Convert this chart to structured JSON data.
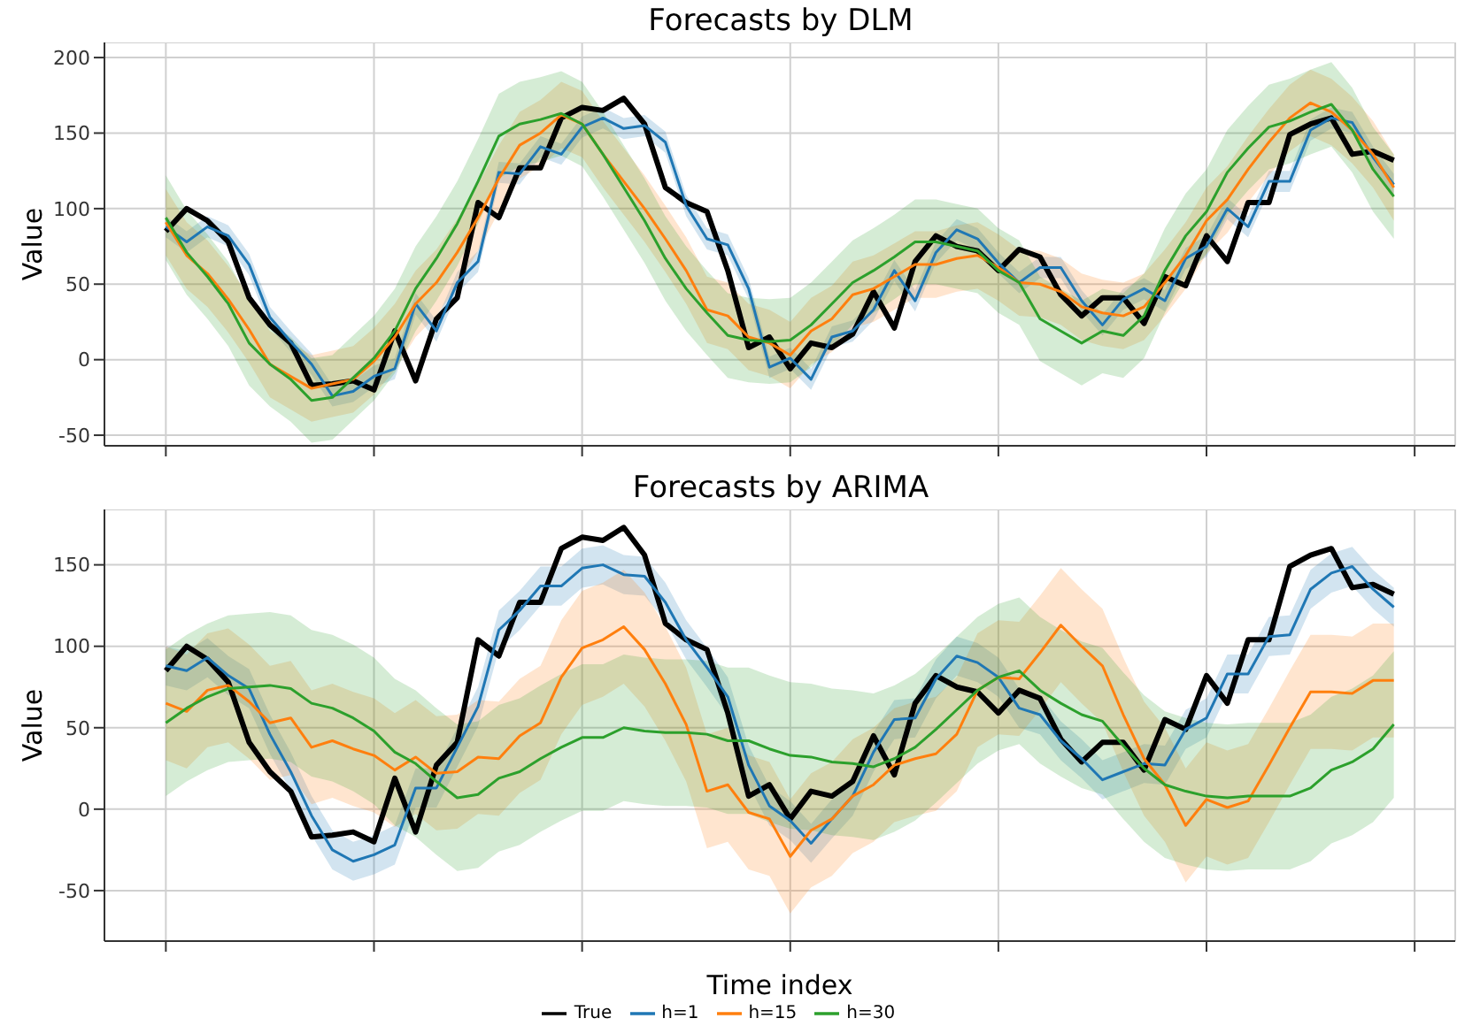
{
  "chart_data": [
    {
      "type": "line",
      "title": "Forecasts by DLM",
      "ylabel": "Value",
      "categories": [
        null,
        null,
        null,
        null,
        null,
        null,
        null,
        null,
        null,
        null,
        null,
        null,
        null,
        null,
        null,
        null,
        null,
        null,
        null,
        null,
        null,
        null,
        null,
        null,
        null,
        null,
        null,
        null,
        null,
        null,
        null,
        null,
        null,
        null,
        null,
        null,
        null,
        null,
        null,
        null,
        null,
        null,
        null,
        null,
        null,
        null,
        null,
        null,
        null,
        null,
        null,
        null,
        null,
        null,
        null,
        null,
        null,
        null,
        null,
        null
      ],
      "ylim": [
        -57,
        210
      ],
      "yticks": [
        -50,
        0,
        50,
        100,
        150,
        200
      ],
      "grid": true,
      "tick_labels": "y",
      "series": [
        {
          "color": "#000000",
          "values": [
            85,
            100,
            92,
            78,
            41,
            23,
            11,
            -17,
            -16,
            -14,
            -20,
            19,
            -14,
            27,
            41,
            104,
            94,
            127,
            127,
            160,
            167,
            165,
            173,
            156,
            114,
            104,
            98,
            59,
            8,
            15,
            -6,
            11,
            8,
            17,
            45,
            21,
            65,
            82,
            75,
            72,
            59,
            73,
            68,
            43,
            29,
            41,
            41,
            24,
            55,
            49,
            82,
            65,
            104,
            104,
            149,
            156,
            160,
            136,
            138,
            132
          ]
        },
        {
          "color": "#1f77b4",
          "values": [
            88,
            78,
            88,
            82,
            63,
            28,
            12,
            -3,
            -24,
            -21,
            -11,
            -6,
            37,
            19,
            51,
            65,
            124,
            123,
            141,
            136,
            154,
            160,
            153,
            155,
            144,
            102,
            80,
            76,
            47,
            -5,
            1,
            -13,
            15,
            19,
            33,
            59,
            39,
            71,
            86,
            80,
            64,
            51,
            61,
            61,
            39,
            23,
            40,
            47,
            39,
            67,
            75,
            100,
            88,
            118,
            118,
            152,
            160,
            157,
            134,
            116
          ],
          "lower": [
            81,
            71,
            81,
            75,
            56,
            21,
            5,
            -10,
            -31,
            -28,
            -18,
            -13,
            30,
            12,
            44,
            58,
            117,
            116,
            134,
            129,
            147,
            153,
            146,
            148,
            137,
            95,
            73,
            69,
            40,
            -12,
            -6,
            -20,
            8,
            12,
            26,
            52,
            32,
            64,
            79,
            73,
            57,
            44,
            54,
            54,
            32,
            16,
            33,
            40,
            32,
            60,
            68,
            93,
            81,
            111,
            111,
            145,
            153,
            150,
            127,
            109
          ],
          "upper": [
            95,
            85,
            95,
            89,
            70,
            35,
            19,
            4,
            -17,
            -14,
            -4,
            1,
            44,
            26,
            58,
            72,
            131,
            130,
            148,
            143,
            161,
            167,
            160,
            162,
            151,
            109,
            87,
            83,
            54,
            2,
            8,
            -6,
            22,
            26,
            40,
            66,
            46,
            78,
            93,
            87,
            71,
            58,
            68,
            68,
            46,
            30,
            47,
            54,
            46,
            74,
            82,
            107,
            95,
            125,
            125,
            159,
            167,
            164,
            141,
            123
          ]
        },
        {
          "color": "#ff7f0e",
          "values": [
            91,
            69,
            57,
            40,
            20,
            -3,
            -11,
            -19,
            -16,
            -13,
            -1,
            15,
            37,
            51,
            71,
            94,
            120,
            142,
            150,
            162,
            156,
            136,
            118,
            100,
            80,
            59,
            33,
            29,
            15,
            11,
            3,
            19,
            27,
            43,
            47,
            55,
            63,
            63,
            67,
            69,
            61,
            51,
            50,
            45,
            35,
            31,
            29,
            35,
            51,
            69,
            92,
            106,
            126,
            144,
            160,
            170,
            164,
            152,
            136,
            114
          ],
          "lower": [
            69,
            47,
            35,
            18,
            -2,
            -25,
            -33,
            -41,
            -38,
            -35,
            -23,
            -7,
            15,
            29,
            49,
            72,
            98,
            120,
            128,
            140,
            134,
            114,
            96,
            78,
            58,
            37,
            11,
            7,
            -7,
            -11,
            -19,
            -3,
            5,
            21,
            25,
            33,
            41,
            41,
            45,
            47,
            39,
            29,
            28,
            23,
            13,
            9,
            7,
            13,
            29,
            47,
            70,
            84,
            104,
            122,
            138,
            148,
            142,
            130,
            114,
            92
          ],
          "upper": [
            113,
            91,
            79,
            62,
            42,
            19,
            11,
            3,
            6,
            9,
            21,
            37,
            59,
            73,
            93,
            116,
            142,
            164,
            172,
            184,
            178,
            158,
            140,
            122,
            102,
            81,
            55,
            51,
            37,
            33,
            25,
            41,
            49,
            65,
            69,
            77,
            85,
            85,
            89,
            91,
            83,
            73,
            72,
            67,
            57,
            53,
            51,
            57,
            73,
            91,
            114,
            128,
            148,
            166,
            182,
            192,
            186,
            174,
            158,
            136
          ]
        },
        {
          "color": "#2ca02c",
          "values": [
            94,
            71,
            55,
            37,
            11,
            -3,
            -13,
            -27,
            -25,
            -12,
            1,
            19,
            47,
            67,
            90,
            118,
            148,
            156,
            159,
            163,
            156,
            136,
            114,
            92,
            67,
            47,
            31,
            16,
            13,
            12,
            13,
            23,
            37,
            51,
            59,
            68,
            78,
            78,
            75,
            72,
            59,
            51,
            27,
            19,
            11,
            19,
            16,
            29,
            59,
            82,
            98,
            124,
            140,
            154,
            158,
            164,
            169,
            152,
            126,
            108
          ],
          "lower": [
            66,
            43,
            27,
            9,
            -17,
            -31,
            -41,
            -55,
            -53,
            -40,
            -27,
            -9,
            19,
            39,
            62,
            90,
            120,
            128,
            131,
            135,
            128,
            108,
            86,
            64,
            39,
            19,
            3,
            -12,
            -15,
            -16,
            -15,
            -5,
            9,
            23,
            31,
            40,
            50,
            50,
            47,
            44,
            31,
            23,
            -1,
            -9,
            -17,
            -9,
            -12,
            1,
            31,
            54,
            70,
            96,
            112,
            126,
            130,
            136,
            141,
            124,
            98,
            80
          ],
          "upper": [
            122,
            99,
            83,
            65,
            39,
            25,
            15,
            1,
            3,
            16,
            29,
            47,
            75,
            95,
            118,
            146,
            176,
            184,
            187,
            191,
            184,
            164,
            142,
            120,
            95,
            75,
            59,
            44,
            41,
            40,
            41,
            51,
            65,
            79,
            87,
            96,
            106,
            106,
            103,
            100,
            87,
            79,
            55,
            47,
            39,
            47,
            44,
            57,
            87,
            110,
            126,
            152,
            168,
            182,
            186,
            192,
            197,
            180,
            154,
            136
          ]
        }
      ]
    },
    {
      "type": "line",
      "title": "Forecasts by ARIMA",
      "xlabel": "Time index",
      "ylabel": "Value",
      "categories": [
        null,
        null,
        null,
        null,
        null,
        null,
        null,
        null,
        null,
        null,
        null,
        null,
        null,
        null,
        null,
        null,
        null,
        null,
        null,
        null,
        null,
        null,
        null,
        null,
        null,
        null,
        null,
        null,
        null,
        null,
        null,
        null,
        null,
        null,
        null,
        null,
        null,
        null,
        null,
        null,
        null,
        null,
        null,
        null,
        null,
        null,
        null,
        null,
        null,
        null,
        null,
        null,
        null,
        null,
        null,
        null,
        null,
        null,
        null,
        null
      ],
      "ylim": [
        -81,
        184
      ],
      "yticks": [
        -50,
        0,
        50,
        100,
        150
      ],
      "grid": true,
      "tick_labels": "y",
      "legend": "bottom",
      "series": [
        {
          "name": "True",
          "color": "#000000",
          "values": [
            85,
            100,
            92,
            78,
            41,
            23,
            11,
            -17,
            -16,
            -14,
            -20,
            19,
            -14,
            27,
            41,
            104,
            94,
            127,
            127,
            160,
            167,
            165,
            173,
            156,
            114,
            104,
            98,
            59,
            8,
            15,
            -6,
            11,
            8,
            17,
            45,
            21,
            65,
            82,
            75,
            72,
            59,
            73,
            68,
            43,
            29,
            41,
            41,
            24,
            55,
            49,
            82,
            65,
            104,
            104,
            149,
            156,
            160,
            136,
            138,
            132
          ]
        },
        {
          "name": "h=1",
          "color": "#1f77b4",
          "values": [
            88,
            85,
            93,
            82,
            74,
            46,
            23,
            -4,
            -25,
            -32,
            -28,
            -22,
            13,
            13,
            38,
            63,
            110,
            122,
            137,
            137,
            148,
            150,
            144,
            143,
            127,
            104,
            87,
            69,
            27,
            2,
            -7,
            -21,
            -6,
            8,
            35,
            55,
            56,
            80,
            94,
            90,
            81,
            62,
            58,
            42,
            31,
            18,
            23,
            28,
            27,
            49,
            56,
            83,
            83,
            106,
            107,
            135,
            145,
            149,
            135,
            124
          ],
          "lower": [
            76,
            73,
            81,
            70,
            62,
            34,
            11,
            -16,
            -37,
            -44,
            -40,
            -34,
            1,
            1,
            26,
            51,
            98,
            110,
            125,
            125,
            136,
            138,
            132,
            131,
            115,
            92,
            75,
            57,
            15,
            -10,
            -19,
            -33,
            -18,
            -4,
            23,
            43,
            44,
            68,
            82,
            78,
            69,
            50,
            46,
            30,
            19,
            6,
            11,
            16,
            15,
            37,
            44,
            71,
            71,
            94,
            95,
            123,
            133,
            137,
            123,
            112
          ],
          "upper": [
            100,
            97,
            105,
            94,
            86,
            58,
            35,
            8,
            -13,
            -20,
            -16,
            -10,
            25,
            25,
            50,
            75,
            122,
            134,
            149,
            149,
            160,
            162,
            156,
            155,
            139,
            116,
            99,
            81,
            39,
            14,
            5,
            -9,
            6,
            20,
            47,
            67,
            68,
            92,
            106,
            102,
            93,
            74,
            70,
            54,
            43,
            30,
            35,
            40,
            39,
            61,
            68,
            95,
            95,
            118,
            119,
            147,
            157,
            161,
            147,
            136
          ]
        },
        {
          "name": "h=15",
          "color": "#ff7f0e",
          "values": [
            65,
            60,
            73,
            76,
            66,
            53,
            56,
            38,
            42,
            37,
            33,
            24,
            32,
            22,
            23,
            32,
            31,
            45,
            53,
            81,
            99,
            104,
            112,
            98,
            77,
            52,
            11,
            15,
            -2,
            -6,
            -29,
            -13,
            -6,
            8,
            15,
            27,
            31,
            34,
            46,
            73,
            81,
            80,
            96,
            113,
            100,
            88,
            58,
            31,
            15,
            -10,
            6,
            1,
            5,
            27,
            50,
            72,
            72,
            71,
            79,
            79
          ],
          "lower": [
            30,
            25,
            38,
            41,
            31,
            18,
            21,
            3,
            7,
            2,
            -2,
            -11,
            -3,
            -13,
            -12,
            -3,
            -4,
            10,
            18,
            46,
            64,
            69,
            77,
            63,
            42,
            17,
            -24,
            -20,
            -37,
            -41,
            -64,
            -48,
            -41,
            -27,
            -20,
            -8,
            -4,
            -1,
            11,
            38,
            46,
            45,
            61,
            78,
            65,
            53,
            23,
            -4,
            -20,
            -45,
            -29,
            -34,
            -30,
            -8,
            15,
            37,
            37,
            36,
            44,
            44
          ],
          "upper": [
            100,
            95,
            108,
            111,
            101,
            88,
            91,
            73,
            77,
            72,
            68,
            59,
            67,
            57,
            58,
            67,
            66,
            80,
            88,
            116,
            134,
            139,
            147,
            133,
            112,
            87,
            46,
            50,
            33,
            29,
            6,
            22,
            29,
            43,
            50,
            62,
            66,
            69,
            81,
            108,
            116,
            115,
            131,
            148,
            135,
            123,
            93,
            66,
            50,
            25,
            41,
            36,
            40,
            62,
            85,
            107,
            107,
            106,
            114,
            114
          ]
        },
        {
          "name": "h=30",
          "color": "#2ca02c",
          "values": [
            53,
            62,
            69,
            74,
            75,
            76,
            74,
            65,
            62,
            56,
            48,
            35,
            28,
            17,
            7,
            9,
            19,
            23,
            31,
            38,
            44,
            44,
            50,
            48,
            47,
            47,
            46,
            42,
            42,
            37,
            33,
            32,
            29,
            28,
            26,
            31,
            38,
            49,
            61,
            73,
            81,
            85,
            73,
            65,
            58,
            54,
            39,
            25,
            15,
            11,
            8,
            7,
            8,
            8,
            8,
            13,
            24,
            29,
            37,
            52
          ],
          "lower": [
            8,
            17,
            24,
            29,
            30,
            31,
            29,
            20,
            17,
            11,
            3,
            -10,
            -17,
            -28,
            -38,
            -36,
            -26,
            -22,
            -14,
            -7,
            -1,
            -1,
            5,
            3,
            2,
            2,
            1,
            -3,
            -3,
            -8,
            -12,
            -13,
            -16,
            -17,
            -19,
            -14,
            -7,
            4,
            16,
            28,
            36,
            40,
            28,
            20,
            13,
            9,
            -6,
            -20,
            -30,
            -34,
            -37,
            -38,
            -37,
            -37,
            -37,
            -32,
            -21,
            -16,
            -8,
            7
          ],
          "upper": [
            98,
            107,
            114,
            119,
            120,
            121,
            119,
            110,
            107,
            101,
            93,
            80,
            73,
            62,
            52,
            54,
            64,
            68,
            76,
            83,
            89,
            89,
            95,
            93,
            92,
            92,
            91,
            87,
            87,
            82,
            78,
            77,
            74,
            73,
            71,
            76,
            83,
            94,
            106,
            118,
            126,
            130,
            118,
            110,
            103,
            99,
            84,
            70,
            60,
            56,
            53,
            52,
            53,
            53,
            53,
            58,
            69,
            74,
            82,
            97
          ]
        }
      ]
    }
  ]
}
